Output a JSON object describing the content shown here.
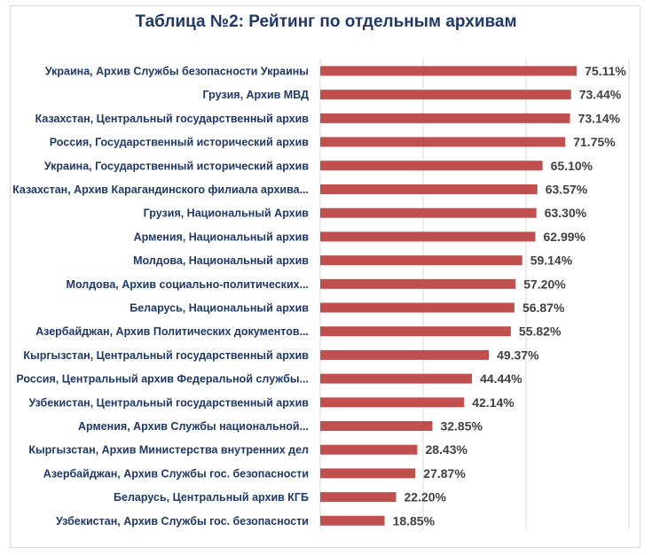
{
  "chart_data": {
    "type": "bar",
    "orientation": "horizontal",
    "title": "Таблица №2: Рейтинг по отдельным архивам",
    "xlim": [
      0,
      100
    ],
    "grid": true,
    "value_format": "percent",
    "bar_color": "#c0504d",
    "title_color": "#1f3864",
    "category_color": "#1f3864",
    "categories": [
      "Украина, Архив Службы безопасности Украины",
      "Грузия, Архив МВД",
      "Казахстан, Центральный государственный архив",
      "Россия, Государственный исторический архив",
      "Украина, Государственный исторический архив",
      "Казахстан, Архив Карагандинского филиала архива...",
      "Грузия, Национальный Архив",
      "Армения, Национальный архив",
      "Молдова, Национальный архив",
      "Молдова, Архив социально-политических...",
      "Беларусь, Национальный архив",
      "Азербайджан, Архив Политических документов...",
      "Кыргызстан, Центральный государственный архив",
      "Россия, Центральный архив Федеральной службы...",
      "Узбекистан, Центральный государственный архив",
      "Армения, Архив Службы национальной...",
      "Кыргызстан, Архив Министерства внутренних дел",
      "Азербайджан, Архив Службы гос. безопасности",
      "Беларусь, Центральный архив КГБ",
      "Узбекистан, Архив Службы гос. безопасности"
    ],
    "labels": [
      "75.11%",
      "73.44%",
      "73.14%",
      "71.75%",
      "65.10%",
      "63.57%",
      "63.30%",
      "62.99%",
      "59.14%",
      "57.20%",
      "56.87%",
      "55.82%",
      "49.37%",
      "44.44%",
      "42.14%",
      "32.85%",
      "28.43%",
      "27.87%",
      "22.20%",
      "18.85%"
    ],
    "values": [
      75.11,
      73.44,
      73.14,
      71.75,
      65.1,
      63.57,
      63.3,
      62.99,
      59.14,
      57.2,
      56.87,
      55.82,
      49.37,
      44.44,
      42.14,
      32.85,
      28.43,
      27.87,
      22.2,
      18.85
    ]
  }
}
